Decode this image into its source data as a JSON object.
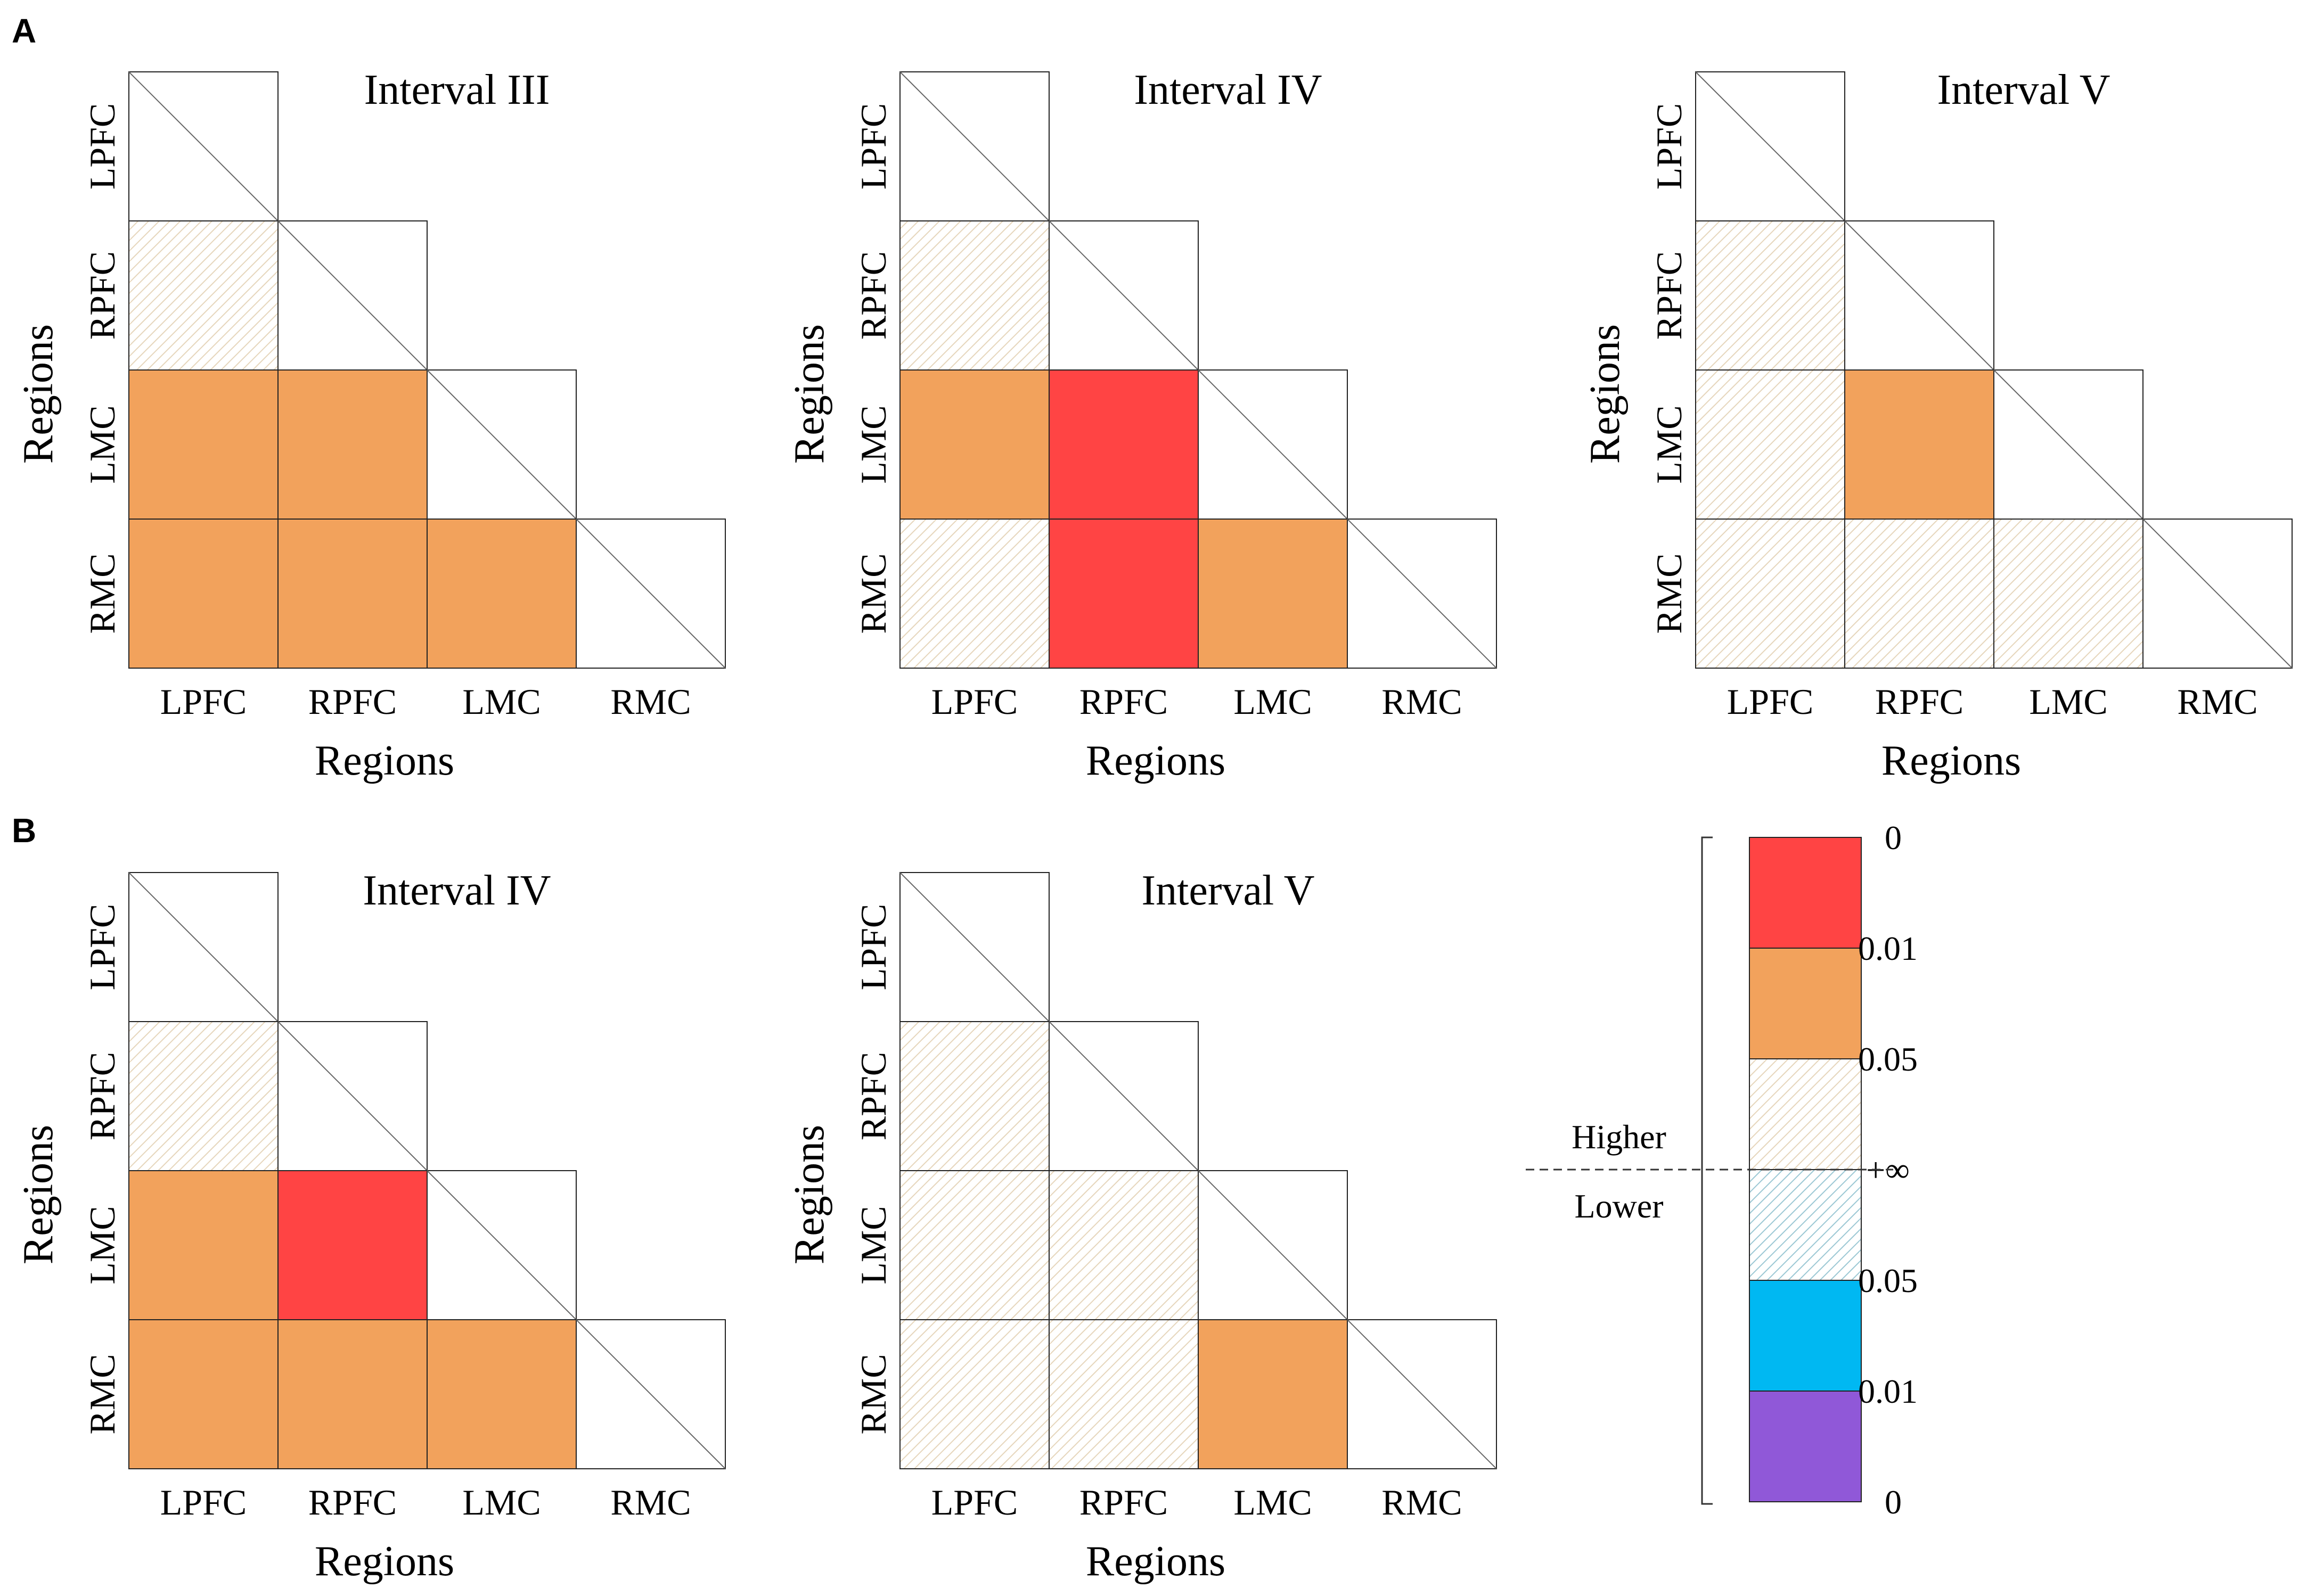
{
  "colors": {
    "red": "#FF4444",
    "orange": "#F2A25C",
    "hatch_warm": "#E6D6BC",
    "hatch_cool": "#9CC8D4",
    "cyan": "#00B8F2",
    "purple": "#9058D8",
    "grid": "#222222",
    "diagonal": "#666666"
  },
  "panel_labels": {
    "a": "A",
    "b": "B"
  },
  "chart_data": [
    {
      "type": "heatmap",
      "panel": "A",
      "title": "Interval III",
      "xlabel": "Regions",
      "ylabel": "Regions",
      "rows": [
        "LPFC",
        "RPFC",
        "LMC",
        "RMC"
      ],
      "columns": [
        "LPFC",
        "RPFC",
        "LMC",
        "RMC"
      ],
      "layout": "lower-triangle",
      "cells": [
        [
          "diag",
          null,
          null,
          null
        ],
        [
          "higher_p_gt_0.05",
          "diag",
          null,
          null
        ],
        [
          "higher_p_0.01_0.05",
          "higher_p_0.01_0.05",
          "diag",
          null
        ],
        [
          "higher_p_0.01_0.05",
          "higher_p_0.01_0.05",
          "higher_p_0.01_0.05",
          "diag"
        ]
      ]
    },
    {
      "type": "heatmap",
      "panel": "A",
      "title": "Interval IV",
      "xlabel": "Regions",
      "ylabel": "Regions",
      "rows": [
        "LPFC",
        "RPFC",
        "LMC",
        "RMC"
      ],
      "columns": [
        "LPFC",
        "RPFC",
        "LMC",
        "RMC"
      ],
      "layout": "lower-triangle",
      "cells": [
        [
          "diag",
          null,
          null,
          null
        ],
        [
          "higher_p_gt_0.05",
          "diag",
          null,
          null
        ],
        [
          "higher_p_0.01_0.05",
          "higher_p_0_0.01",
          "diag",
          null
        ],
        [
          "higher_p_gt_0.05",
          "higher_p_0_0.01",
          "higher_p_0.01_0.05",
          "diag"
        ]
      ]
    },
    {
      "type": "heatmap",
      "panel": "A",
      "title": "Interval V",
      "xlabel": "Regions",
      "ylabel": "Regions",
      "rows": [
        "LPFC",
        "RPFC",
        "LMC",
        "RMC"
      ],
      "columns": [
        "LPFC",
        "RPFC",
        "LMC",
        "RMC"
      ],
      "layout": "lower-triangle",
      "cells": [
        [
          "diag",
          null,
          null,
          null
        ],
        [
          "higher_p_gt_0.05",
          "diag",
          null,
          null
        ],
        [
          "higher_p_gt_0.05",
          "higher_p_0.01_0.05",
          "diag",
          null
        ],
        [
          "higher_p_gt_0.05",
          "higher_p_gt_0.05",
          "higher_p_gt_0.05",
          "diag"
        ]
      ]
    },
    {
      "type": "heatmap",
      "panel": "B",
      "title": "Interval IV",
      "xlabel": "Regions",
      "ylabel": "Regions",
      "rows": [
        "LPFC",
        "RPFC",
        "LMC",
        "RMC"
      ],
      "columns": [
        "LPFC",
        "RPFC",
        "LMC",
        "RMC"
      ],
      "layout": "lower-triangle",
      "cells": [
        [
          "diag",
          null,
          null,
          null
        ],
        [
          "higher_p_gt_0.05",
          "diag",
          null,
          null
        ],
        [
          "higher_p_0.01_0.05",
          "higher_p_0_0.01",
          "diag",
          null
        ],
        [
          "higher_p_0.01_0.05",
          "higher_p_0.01_0.05",
          "higher_p_0.01_0.05",
          "diag"
        ]
      ]
    },
    {
      "type": "heatmap",
      "panel": "B",
      "title": "Interval V",
      "xlabel": "Regions",
      "ylabel": "Regions",
      "rows": [
        "LPFC",
        "RPFC",
        "LMC",
        "RMC"
      ],
      "columns": [
        "LPFC",
        "RPFC",
        "LMC",
        "RMC"
      ],
      "layout": "lower-triangle",
      "cells": [
        [
          "diag",
          null,
          null,
          null
        ],
        [
          "higher_p_gt_0.05",
          "diag",
          null,
          null
        ],
        [
          "higher_p_gt_0.05",
          "higher_p_gt_0.05",
          "diag",
          null
        ],
        [
          "higher_p_gt_0.05",
          "higher_p_gt_0.05",
          "higher_p_0.01_0.05",
          "diag"
        ]
      ]
    }
  ],
  "legend": {
    "higher_label": "Higher",
    "lower_label": "Lower",
    "bins": [
      {
        "key": "higher_p_0_0.01",
        "fill": "red"
      },
      {
        "key": "higher_p_0.01_0.05",
        "fill": "orange"
      },
      {
        "key": "higher_p_gt_0.05",
        "fill": "hatch_warm"
      },
      {
        "key": "lower_p_gt_0.05",
        "fill": "hatch_cool"
      },
      {
        "key": "lower_p_0.01_0.05",
        "fill": "cyan"
      },
      {
        "key": "lower_p_0_0.01",
        "fill": "purple"
      }
    ],
    "tick_labels": [
      "0",
      "0.01",
      "0.05",
      "+∞",
      "0.05",
      "0.01",
      "0"
    ]
  }
}
